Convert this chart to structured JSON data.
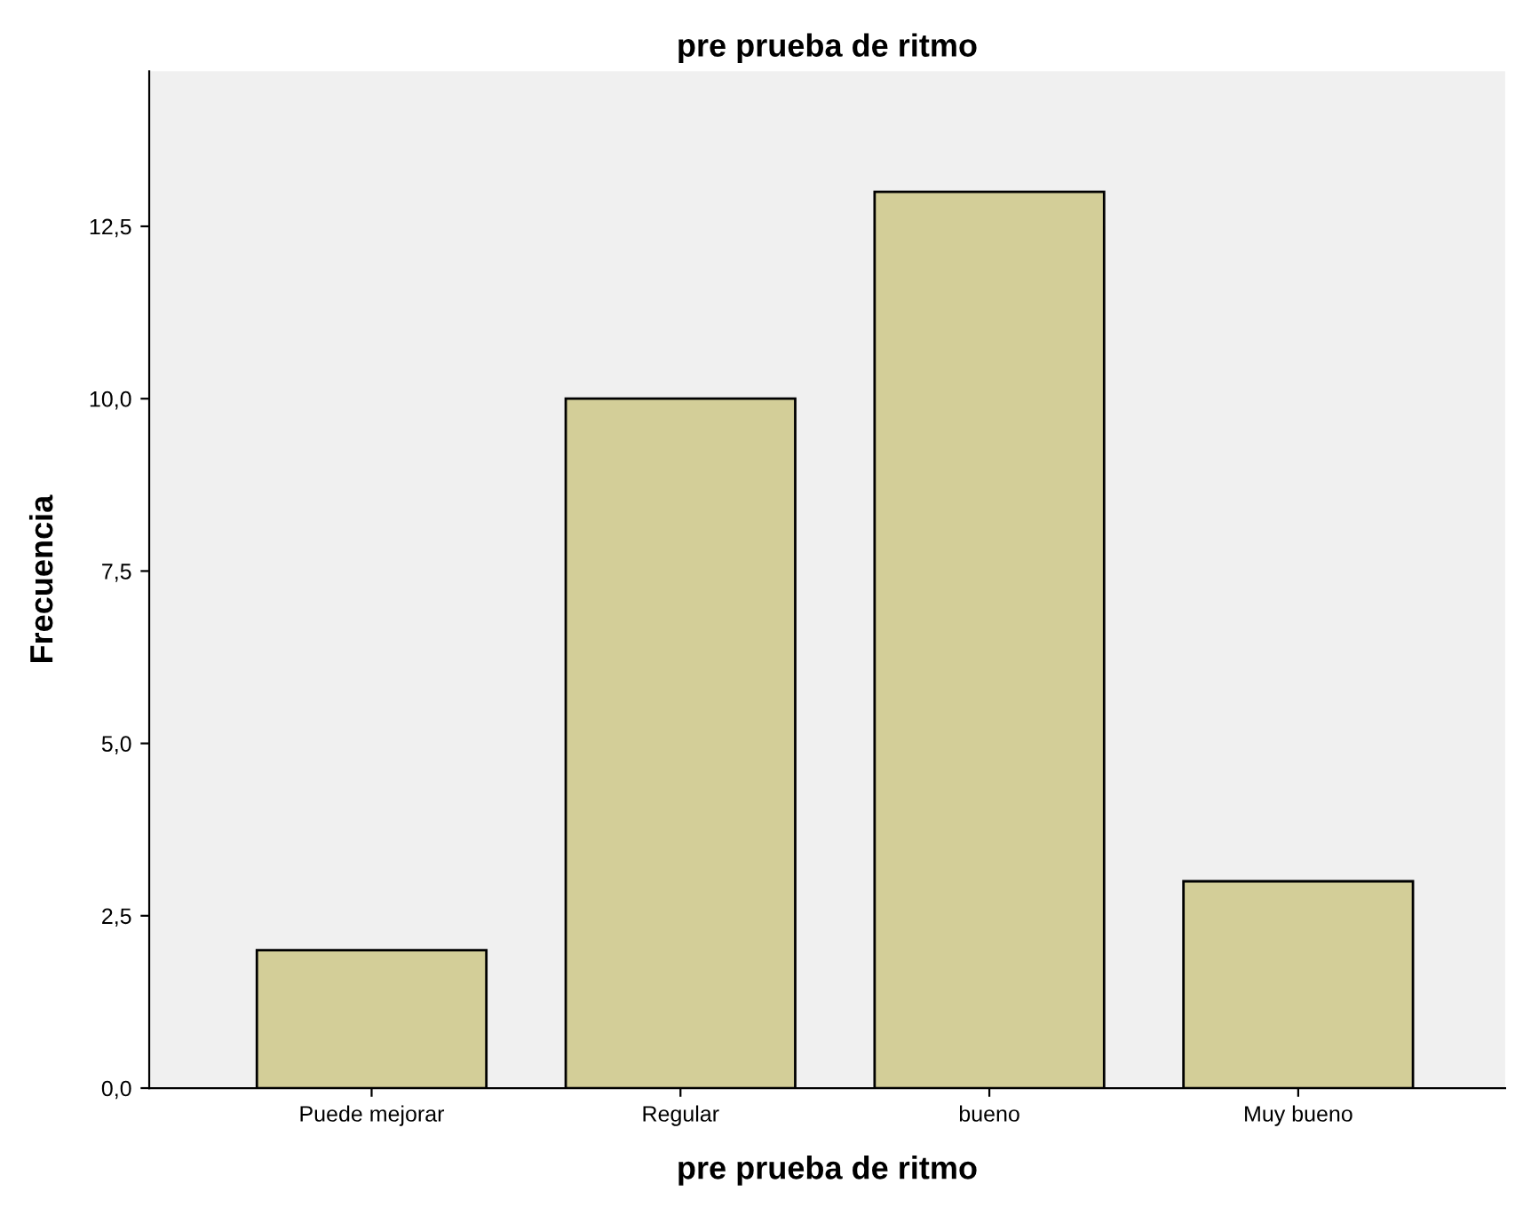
{
  "chart_data": {
    "type": "bar",
    "title": "pre prueba de ritmo",
    "xlabel": "pre prueba de ritmo",
    "ylabel": "Frecuencia",
    "categories": [
      "Puede mejorar",
      "Regular",
      "bueno",
      "Muy bueno"
    ],
    "values": [
      2,
      10,
      13,
      3
    ],
    "color": "#d3ce98",
    "ylim": [
      0,
      14.75
    ],
    "yticks": [
      {
        "value": 0,
        "label": "0,0"
      },
      {
        "value": 2.5,
        "label": "2,5"
      },
      {
        "value": 5,
        "label": "5,0"
      },
      {
        "value": 7.5,
        "label": "7,5"
      },
      {
        "value": 10,
        "label": "10,0"
      },
      {
        "value": 12.5,
        "label": "12,5"
      }
    ],
    "grid": false,
    "legend": false
  }
}
